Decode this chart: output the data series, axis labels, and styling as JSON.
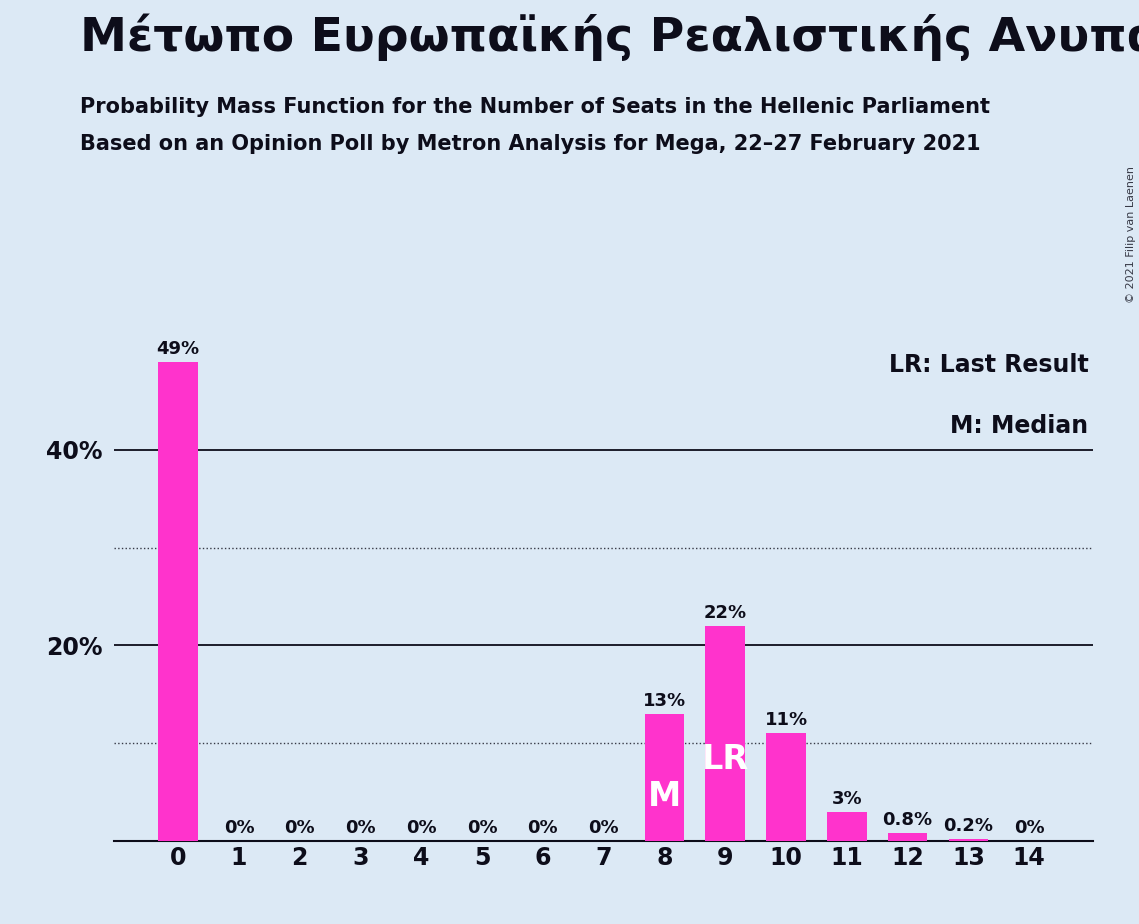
{
  "title": "Μέτωπο Ευρωπαϊκής Ρεαλιστικής Ανυπακοής",
  "subtitle1": "Probability Mass Function for the Number of Seats in the Hellenic Parliament",
  "subtitle2": "Based on an Opinion Poll by Metron Analysis for Mega, 22–27 February 2021",
  "copyright": "© 2021 Filip van Laenen",
  "categories": [
    0,
    1,
    2,
    3,
    4,
    5,
    6,
    7,
    8,
    9,
    10,
    11,
    12,
    13,
    14
  ],
  "values": [
    49,
    0,
    0,
    0,
    0,
    0,
    0,
    0,
    13,
    22,
    11,
    3,
    0.8,
    0.2,
    0
  ],
  "labels": [
    "49%",
    "0%",
    "0%",
    "0%",
    "0%",
    "0%",
    "0%",
    "0%",
    "13%",
    "22%",
    "11%",
    "3%",
    "0.8%",
    "0.2%",
    "0%"
  ],
  "bar_color": "#FF33CC",
  "background_color": "#DCE9F5",
  "text_color": "#0d0d1a",
  "median_seat": 8,
  "lr_seat": 9,
  "legend_lr": "LR: Last Result",
  "legend_m": "M: Median",
  "ylim": [
    0,
    52
  ],
  "ytick_positions": [
    20,
    40
  ],
  "ytick_labels": [
    "20%",
    "40%"
  ],
  "solid_gridlines": [
    20,
    40
  ],
  "dotted_gridlines": [
    10,
    30
  ],
  "title_fontsize": 34,
  "subtitle_fontsize": 15,
  "tick_fontsize": 17,
  "label_fontsize": 13,
  "legend_fontsize": 17,
  "bar_width": 0.65
}
